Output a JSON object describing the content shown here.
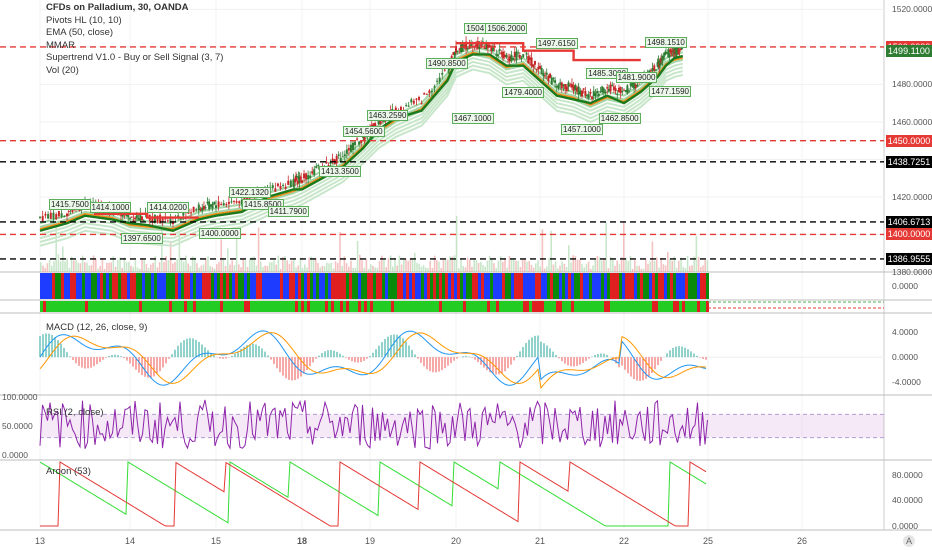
{
  "legend": {
    "title": "CFDs on Palladium, 30, OANDA",
    "lines": [
      "Pivots HL (10, 10)",
      "EMA (50, close)",
      "MMAR",
      "Supertrend V1.0 - Buy or Sell Signal (3, 7)",
      "Vol (20)"
    ]
  },
  "panes": {
    "macd_label": "MACD (12, 26, close, 9)",
    "rsi_label": "RSI (2, close)",
    "aroon_label": "Aroon (53)"
  },
  "price_axis": [
    "1520.0000",
    "1500.0000",
    "1480.0000",
    "1460.0000",
    "1450.0000",
    "1440.0000",
    "1420.0000",
    "1400.0000",
    "1380.0000"
  ],
  "price_tags": [
    {
      "text": "1500.0000",
      "price": 1500.0,
      "bg": "#e53935",
      "fg": "#ffffff"
    },
    {
      "text": "1499.1100",
      "price": 1497.8,
      "bg": "#2e7d32",
      "fg": "#ffffff"
    },
    {
      "text": "1450.0000",
      "price": 1450.0,
      "bg": "#e53935",
      "fg": "#ffffff"
    },
    {
      "text": "1438.7251",
      "price": 1438.7,
      "bg": "#000000",
      "fg": "#ffffff"
    },
    {
      "text": "1406.6713",
      "price": 1406.7,
      "bg": "#000000",
      "fg": "#ffffff"
    },
    {
      "text": "1400.0000",
      "price": 1400.0,
      "bg": "#e53935",
      "fg": "#ffffff"
    },
    {
      "text": "1386.9555",
      "price": 1387.0,
      "bg": "#000000",
      "fg": "#ffffff"
    }
  ],
  "mmar_axis": [
    "0.0000"
  ],
  "macd_axis": [
    "4.0000",
    "0.0000",
    "-4.0000"
  ],
  "rsi_axis": [
    "100.0000",
    "50.0000",
    "0.0000"
  ],
  "aroon_axis": [
    "80.0000",
    "40.0000",
    "0.0000"
  ],
  "dates": [
    "13",
    "14",
    "15",
    "18",
    "19",
    "20",
    "21",
    "22",
    "25",
    "26"
  ],
  "corner": "A",
  "chart_data": {
    "type": "line",
    "title": "CFDs on Palladium, 30, OANDA",
    "x": [
      "13",
      "14",
      "15",
      "18",
      "19",
      "20",
      "21",
      "22",
      "25",
      "26"
    ],
    "price_range": [
      1380,
      1525
    ],
    "close_path": [
      [
        0,
        1408
      ],
      [
        0.3,
        1412
      ],
      [
        0.5,
        1416
      ],
      [
        0.8,
        1414
      ],
      [
        1.0,
        1410
      ],
      [
        1.2,
        1409
      ],
      [
        1.5,
        1408
      ],
      [
        1.8,
        1414
      ],
      [
        2.0,
        1416
      ],
      [
        2.3,
        1418
      ],
      [
        2.6,
        1424
      ],
      [
        2.9,
        1428
      ],
      [
        3.0,
        1430
      ],
      [
        3.3,
        1436
      ],
      [
        3.6,
        1442
      ],
      [
        3.9,
        1452
      ],
      [
        4.1,
        1460
      ],
      [
        4.3,
        1466
      ],
      [
        4.6,
        1472
      ],
      [
        4.9,
        1488
      ],
      [
        5.0,
        1498
      ],
      [
        5.2,
        1502
      ],
      [
        5.4,
        1500
      ],
      [
        5.6,
        1494
      ],
      [
        5.8,
        1496
      ],
      [
        6.0,
        1488
      ],
      [
        6.2,
        1480
      ],
      [
        6.4,
        1478
      ],
      [
        6.6,
        1474
      ],
      [
        6.8,
        1478
      ],
      [
        7.0,
        1476
      ],
      [
        7.2,
        1482
      ],
      [
        7.4,
        1490
      ],
      [
        7.5,
        1496
      ],
      [
        7.6,
        1498
      ],
      [
        7.7,
        1499.1
      ]
    ],
    "pivot_labels": [
      {
        "text": "1415.7500",
        "x": 0.1,
        "price": 1415.75
      },
      {
        "text": "1414.1000",
        "x": 0.55,
        "price": 1414.1
      },
      {
        "text": "1414.0200",
        "x": 1.2,
        "price": 1414.02
      },
      {
        "text": "1397.6500",
        "x": 0.9,
        "price": 1397.65
      },
      {
        "text": "1400.0000",
        "x": 1.8,
        "price": 1400.0
      },
      {
        "text": "1422.1320",
        "x": 2.15,
        "price": 1422.13
      },
      {
        "text": "1415.8500",
        "x": 2.3,
        "price": 1415.85
      },
      {
        "text": "1411.7900",
        "x": 2.6,
        "price": 1411.79
      },
      {
        "text": "1413.3500",
        "x": 3.25,
        "price": 1433.5
      },
      {
        "text": "1454.5600",
        "x": 3.6,
        "price": 1454.56
      },
      {
        "text": "1463.2590",
        "x": 3.95,
        "price": 1463.26
      },
      {
        "text": "1490.8500",
        "x": 4.65,
        "price": 1490.85
      },
      {
        "text": "1467.1000",
        "x": 4.95,
        "price": 1461.3
      },
      {
        "text": "1504.1500",
        "x": 5.1,
        "price": 1509.7
      },
      {
        "text": "1506.2000",
        "x": 5.35,
        "price": 1509.7
      },
      {
        "text": "1479.4000",
        "x": 5.55,
        "price": 1475.5
      },
      {
        "text": "1497.6150",
        "x": 5.95,
        "price": 1501.5
      },
      {
        "text": "1485.3000",
        "x": 6.55,
        "price": 1485.3
      },
      {
        "text": "1481.9000",
        "x": 6.9,
        "price": 1483.3
      },
      {
        "text": "1457.1000",
        "x": 6.25,
        "price": 1455.6
      },
      {
        "text": "1462.8500",
        "x": 6.7,
        "price": 1461.4
      },
      {
        "text": "1498.1510",
        "x": 7.25,
        "price": 1502.3
      },
      {
        "text": "1477.1590",
        "x": 7.3,
        "price": 1476.0
      }
    ],
    "horizontal_levels": [
      {
        "price": 1500.0,
        "color": "#e53935"
      },
      {
        "price": 1450.0,
        "color": "#e53935"
      },
      {
        "price": 1438.7251,
        "color": "#000000"
      },
      {
        "price": 1406.6713,
        "color": "#000000"
      },
      {
        "price": 1400.0,
        "color": "#e53935"
      },
      {
        "price": 1386.9555,
        "color": "#000000"
      }
    ],
    "macd_range": [
      -6,
      7
    ],
    "rsi_range": [
      0,
      100
    ],
    "aroon_range": [
      0,
      100
    ]
  }
}
